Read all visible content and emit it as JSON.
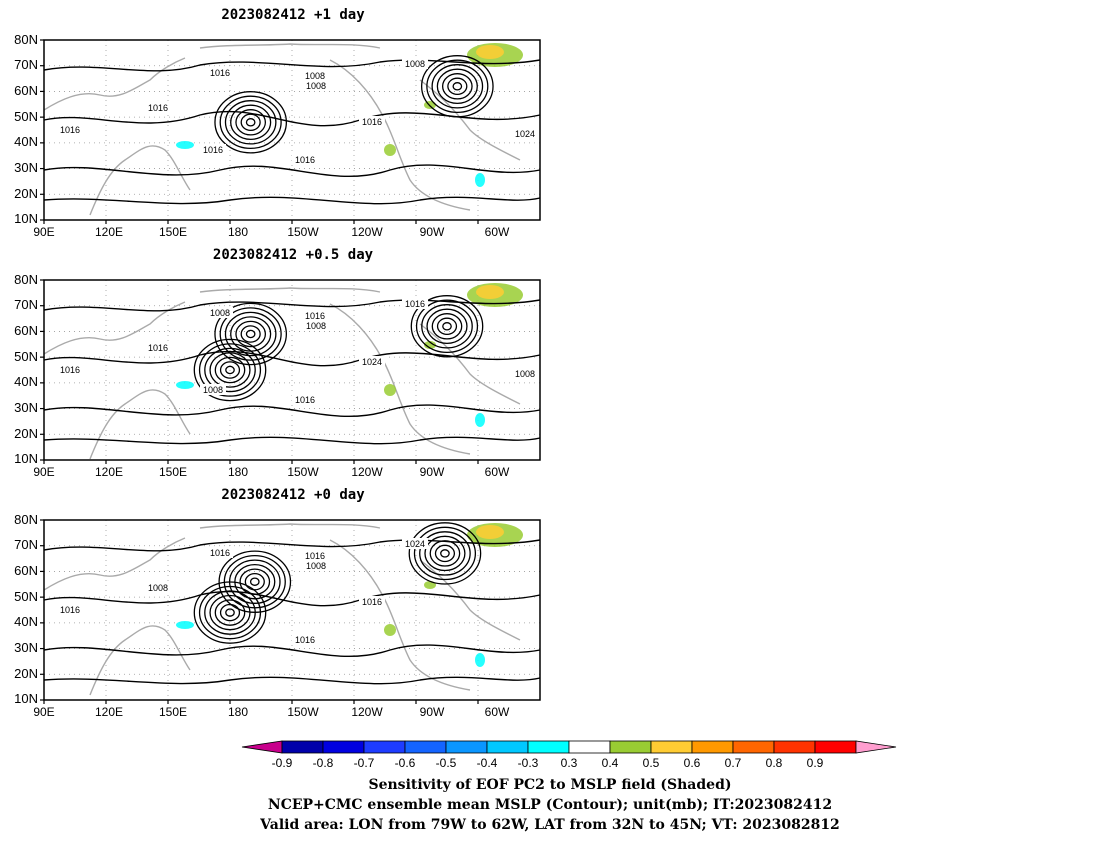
{
  "panels": [
    {
      "title": "2023082412  +1 day",
      "contour_labels": [
        "1016",
        "1008",
        "1016",
        "1016",
        "1008",
        "1008",
        "1016",
        "1016",
        "1024",
        "1016"
      ],
      "lows": [
        {
          "lon": 190,
          "lat": 48
        },
        {
          "lon": 290,
          "lat": 62
        }
      ]
    },
    {
      "title": "2023082412  +0.5 day",
      "contour_labels": [
        "1008",
        "1016",
        "1016",
        "1016",
        "1008",
        "1016",
        "1024",
        "1016",
        "1008",
        "1008"
      ],
      "lows": [
        {
          "lon": 180,
          "lat": 45
        },
        {
          "lon": 190,
          "lat": 59
        },
        {
          "lon": 285,
          "lat": 62
        }
      ]
    },
    {
      "title": "2023082412  +0 day",
      "contour_labels": [
        "1016",
        "1016",
        "1008",
        "1016",
        "1008",
        "1024",
        "1016",
        "1016"
      ],
      "lows": [
        {
          "lon": 180,
          "lat": 44
        },
        {
          "lon": 192,
          "lat": 56
        },
        {
          "lon": 284,
          "lat": 67
        }
      ]
    }
  ],
  "axes": {
    "lat_labels": [
      "80N",
      "70N",
      "60N",
      "50N",
      "40N",
      "30N",
      "20N",
      "10N"
    ],
    "lon_labels": [
      "90E",
      "120E",
      "150E",
      "180",
      "150W",
      "120W",
      "90W",
      "60W"
    ]
  },
  "colorbar": {
    "labels": [
      "-0.9",
      "-0.8",
      "-0.7",
      "-0.6",
      "-0.5",
      "-0.4",
      "-0.3",
      "0.3",
      "0.4",
      "0.5",
      "0.6",
      "0.7",
      "0.8",
      "0.9"
    ],
    "colors": [
      "#0000aa",
      "#0000e0",
      "#1e3cff",
      "#1464ff",
      "#0a96ff",
      "#00c8ff",
      "#00ffff",
      "#ffffff",
      "#99cc33",
      "#ffcc33",
      "#ff9900",
      "#ff6600",
      "#ff3300",
      "#ff0000"
    ],
    "low_end_color": "#c8008c",
    "high_end_color": "#ff9ecf"
  },
  "captions": [
    "Sensitivity of EOF PC2 to MSLP field (Shaded)",
    "NCEP+CMC ensemble mean MSLP (Contour); unit(mb); IT:2023082412",
    "Valid area: LON from 79W to 62W, LAT from 32N to 45N; VT: 2023082812"
  ]
}
